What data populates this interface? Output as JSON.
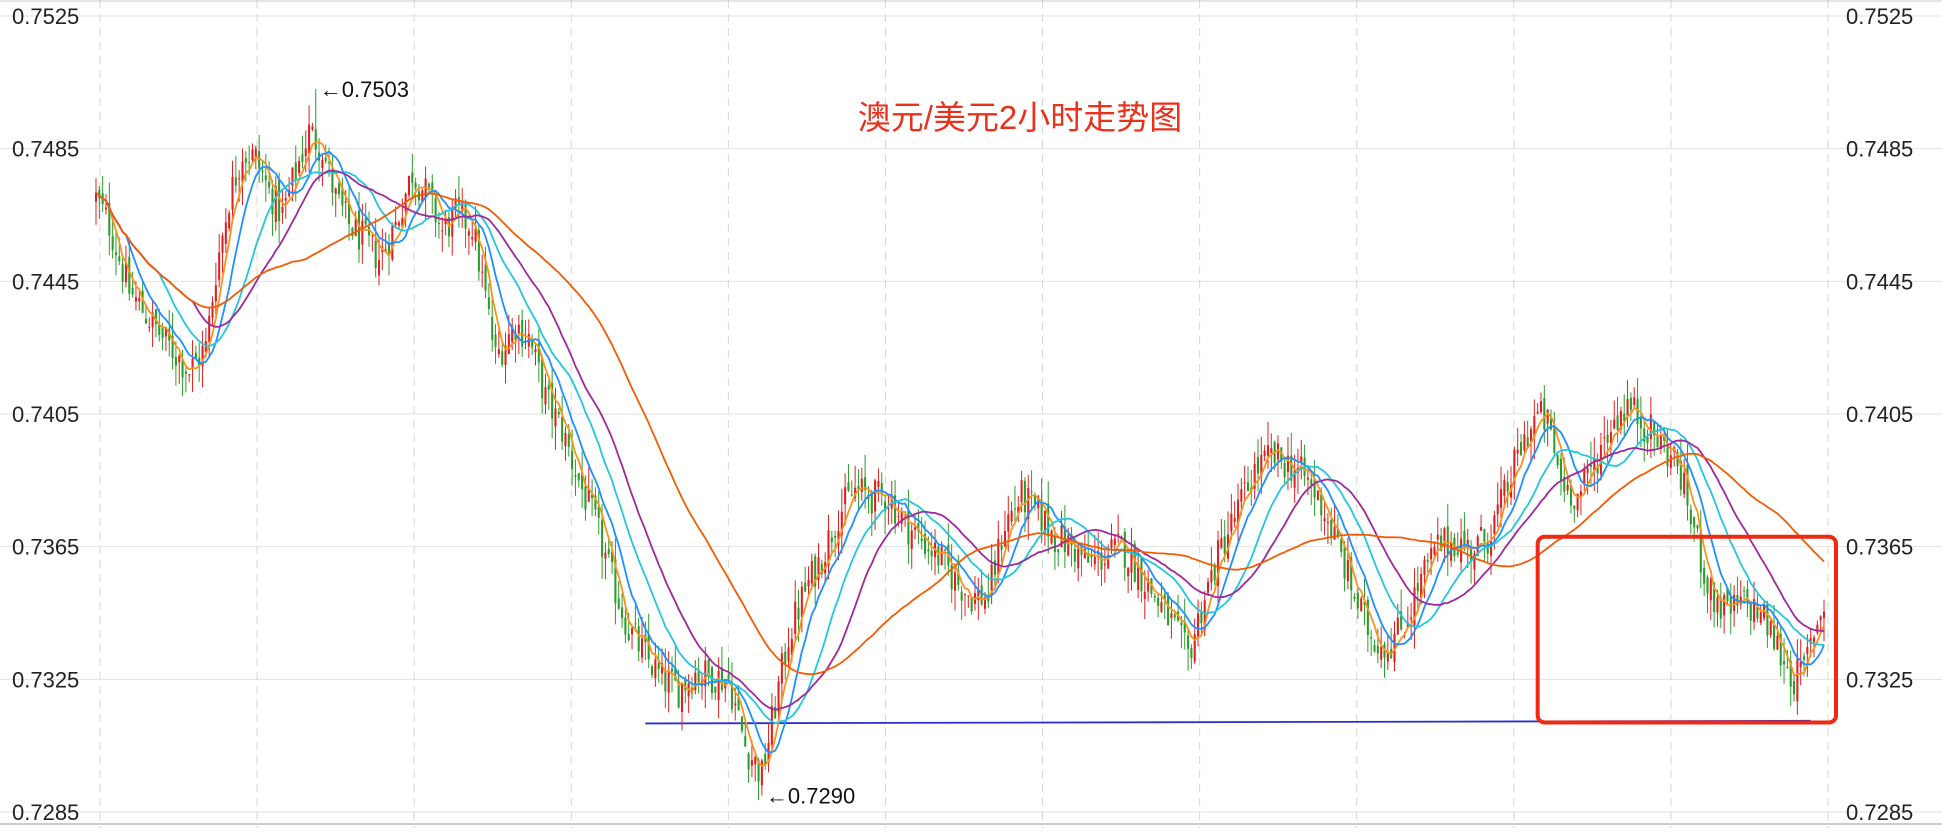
{
  "chart_data": {
    "type": "candlestick",
    "title": "澳元/美元2小时走势图",
    "xlabel": "",
    "ylabel": "",
    "ylim": [
      0.7285,
      0.7525
    ],
    "y_ticks": [
      "0.7525",
      "0.7485",
      "0.7445",
      "0.7405",
      "0.7365",
      "0.7325",
      "0.7285"
    ],
    "grid": true,
    "legend": "none",
    "annotations": [
      {
        "text": "←0.7503",
        "x": 66,
        "y": 0.7503
      },
      {
        "text": "←0.7290",
        "x": 200,
        "y": 0.729
      }
    ],
    "support_line": {
      "x_start": 165,
      "x_end": 515,
      "y_start": 0.73117,
      "y_end": 0.73125
    },
    "highlight_box": {
      "x_start": 433,
      "x_end": 523,
      "y_top": 0.7368,
      "y_bottom": 0.7312
    },
    "n_candles": 520,
    "ohlc": {
      "close_path": [
        [
          0,
          0.747
        ],
        [
          4,
          0.7462
        ],
        [
          10,
          0.7442
        ],
        [
          20,
          0.7428
        ],
        [
          28,
          0.7418
        ],
        [
          33,
          0.7425
        ],
        [
          36,
          0.7448
        ],
        [
          40,
          0.747
        ],
        [
          44,
          0.7484
        ],
        [
          48,
          0.7482
        ],
        [
          52,
          0.7472
        ],
        [
          56,
          0.7465
        ],
        [
          60,
          0.7478
        ],
        [
          64,
          0.749
        ],
        [
          68,
          0.7485
        ],
        [
          72,
          0.747
        ],
        [
          76,
          0.7462
        ],
        [
          80,
          0.7458
        ],
        [
          85,
          0.7452
        ],
        [
          90,
          0.7462
        ],
        [
          95,
          0.7478
        ],
        [
          100,
          0.747
        ],
        [
          104,
          0.746
        ],
        [
          108,
          0.7465
        ],
        [
          113,
          0.7462
        ],
        [
          117,
          0.744
        ],
        [
          120,
          0.7422
        ],
        [
          126,
          0.7432
        ],
        [
          130,
          0.7428
        ],
        [
          135,
          0.741
        ],
        [
          140,
          0.74
        ],
        [
          145,
          0.7385
        ],
        [
          150,
          0.7372
        ],
        [
          155,
          0.7355
        ],
        [
          160,
          0.734
        ],
        [
          165,
          0.7332
        ],
        [
          170,
          0.7325
        ],
        [
          175,
          0.7322
        ],
        [
          180,
          0.7327
        ],
        [
          185,
          0.7326
        ],
        [
          190,
          0.7325
        ],
        [
          195,
          0.7305
        ],
        [
          200,
          0.7296
        ],
        [
          203,
          0.7312
        ],
        [
          208,
          0.7338
        ],
        [
          213,
          0.7352
        ],
        [
          218,
          0.7362
        ],
        [
          223,
          0.7375
        ],
        [
          228,
          0.7382
        ],
        [
          233,
          0.738
        ],
        [
          238,
          0.738
        ],
        [
          243,
          0.7372
        ],
        [
          248,
          0.7367
        ],
        [
          253,
          0.7362
        ],
        [
          258,
          0.7355
        ],
        [
          263,
          0.735
        ],
        [
          268,
          0.735
        ],
        [
          273,
          0.7372
        ],
        [
          278,
          0.738
        ],
        [
          283,
          0.7375
        ],
        [
          288,
          0.7368
        ],
        [
          293,
          0.7365
        ],
        [
          298,
          0.736
        ],
        [
          303,
          0.7362
        ],
        [
          308,
          0.7365
        ],
        [
          313,
          0.7358
        ],
        [
          318,
          0.735
        ],
        [
          323,
          0.7342
        ],
        [
          328,
          0.7332
        ],
        [
          333,
          0.735
        ],
        [
          338,
          0.7365
        ],
        [
          343,
          0.7376
        ],
        [
          348,
          0.7388
        ],
        [
          353,
          0.7392
        ],
        [
          358,
          0.739
        ],
        [
          363,
          0.7386
        ],
        [
          368,
          0.7378
        ],
        [
          373,
          0.7365
        ],
        [
          378,
          0.735
        ],
        [
          383,
          0.7338
        ],
        [
          388,
          0.7335
        ],
        [
          393,
          0.7342
        ],
        [
          398,
          0.7355
        ],
        [
          403,
          0.7365
        ],
        [
          408,
          0.7367
        ],
        [
          413,
          0.7364
        ],
        [
          418,
          0.7368
        ],
        [
          423,
          0.738
        ],
        [
          428,
          0.7395
        ],
        [
          433,
          0.7405
        ],
        [
          436,
          0.7402
        ],
        [
          440,
          0.7385
        ],
        [
          445,
          0.738
        ],
        [
          450,
          0.739
        ],
        [
          455,
          0.7402
        ],
        [
          460,
          0.7408
        ],
        [
          465,
          0.7402
        ],
        [
          470,
          0.7396
        ],
        [
          475,
          0.739
        ],
        [
          480,
          0.737
        ],
        [
          485,
          0.735
        ],
        [
          490,
          0.7345
        ],
        [
          495,
          0.7348
        ],
        [
          500,
          0.7345
        ],
        [
          505,
          0.7335
        ],
        [
          510,
          0.7325
        ],
        [
          513,
          0.7328
        ],
        [
          516,
          0.734
        ],
        [
          519,
          0.7348
        ]
      ]
    },
    "series": [
      {
        "type": "sma",
        "period": 5,
        "color": "#f7931e"
      },
      {
        "type": "sma",
        "period": 10,
        "color": "#1e90ff"
      },
      {
        "type": "sma",
        "period": 20,
        "color": "#22c7dc"
      },
      {
        "type": "sma",
        "period": 30,
        "color": "#a0299a"
      },
      {
        "type": "sma",
        "period": 60,
        "color": "#f25c05"
      }
    ],
    "colors": {
      "up": "#e02020",
      "down": "#2a9d2a",
      "grid": "#e2e2e2",
      "grid_vertical": "#d6d6d6",
      "support_line": "#2e2ecc",
      "highlight_box": "#ee2a14"
    }
  }
}
